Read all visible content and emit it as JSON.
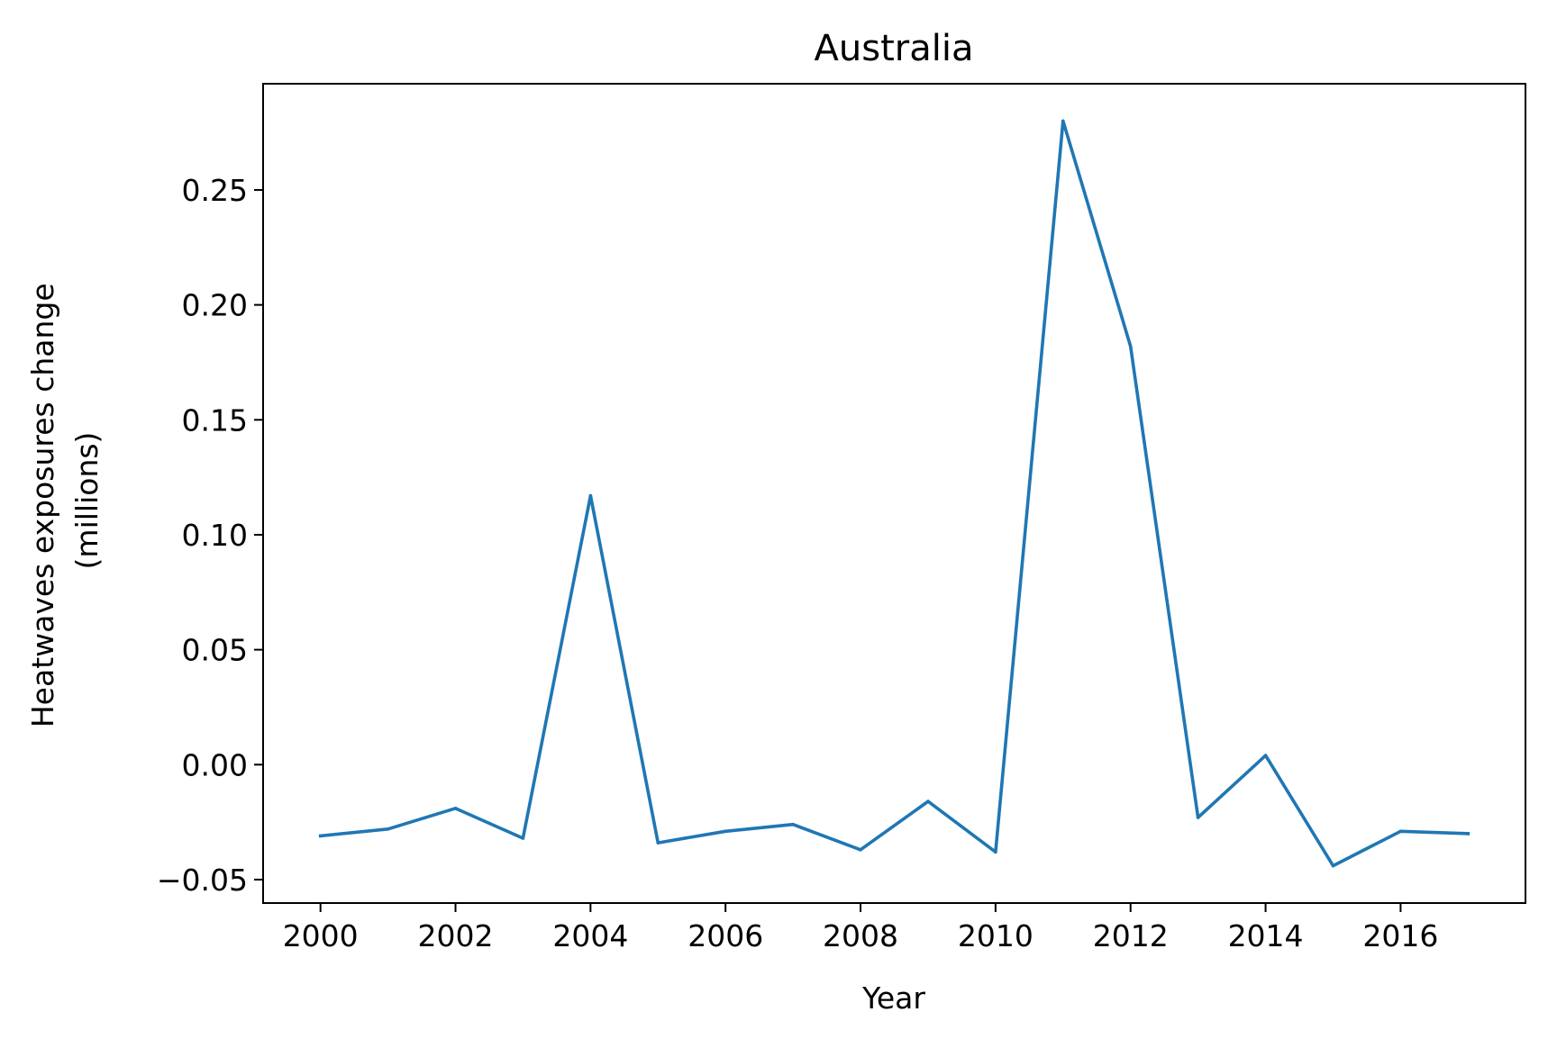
{
  "chart_data": {
    "type": "line",
    "title": "Australia",
    "xlabel": "Year",
    "ylabel": [
      "Heatwaves exposures change",
      "(millions)"
    ],
    "x": [
      2000,
      2001,
      2002,
      2003,
      2004,
      2005,
      2006,
      2007,
      2008,
      2009,
      2010,
      2011,
      2012,
      2013,
      2014,
      2015,
      2016,
      2017
    ],
    "series": [
      {
        "values": [
          -0.031,
          -0.028,
          -0.019,
          -0.032,
          0.117,
          -0.034,
          -0.029,
          -0.026,
          -0.037,
          -0.016,
          -0.038,
          0.28,
          0.182,
          -0.023,
          0.004,
          -0.044,
          -0.029,
          -0.03
        ],
        "color": "#1f77b4"
      }
    ],
    "xticks": [
      "2000",
      "2002",
      "2004",
      "2006",
      "2008",
      "2010",
      "2012",
      "2014",
      "2016"
    ],
    "yticks": [
      "−0.05",
      "0.00",
      "0.05",
      "0.10",
      "0.15",
      "0.20",
      "0.25"
    ],
    "xlim": [
      1999.15,
      2017.85
    ],
    "ylim": [
      -0.0602,
      0.2962
    ],
    "grid": false,
    "legend": "none"
  }
}
